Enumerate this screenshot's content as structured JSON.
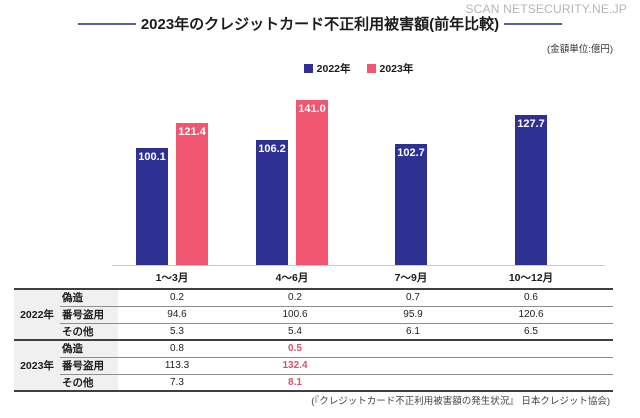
{
  "watermark": "SCAN NETSECURITY.NE.JP",
  "header": {
    "title": "2023年のクレジットカード不正利用被害額(前年比較)",
    "unit_note": "(金額単位:億円)"
  },
  "legend": {
    "items": [
      {
        "label": "2022年",
        "color": "#2E3192"
      },
      {
        "label": "2023年",
        "color": "#F0566F"
      }
    ]
  },
  "chart_data": {
    "type": "bar",
    "title": "2023年のクレジットカード不正利用被害額(前年比較)",
    "unit": "億円",
    "categories": [
      "1〜3月",
      "4〜6月",
      "7〜9月",
      "10〜12月"
    ],
    "series": [
      {
        "name": "2022年",
        "color": "#2E3192",
        "values": [
          100.1,
          106.2,
          102.7,
          127.7
        ]
      },
      {
        "name": "2023年",
        "color": "#F0566F",
        "values": [
          121.4,
          141.0,
          null,
          null
        ]
      }
    ],
    "ylim": [
      0,
      150
    ],
    "grid": false,
    "legend_position": "top",
    "value_labels": "inside-top"
  },
  "table": {
    "groups": [
      {
        "year": "2022年",
        "rows": [
          {
            "label": "偽造",
            "values": [
              "0.2",
              "0.2",
              "0.7",
              "0.6"
            ]
          },
          {
            "label": "番号盗用",
            "values": [
              "94.6",
              "100.6",
              "95.9",
              "120.6"
            ]
          },
          {
            "label": "その他",
            "values": [
              "5.3",
              "5.4",
              "6.1",
              "6.5"
            ]
          }
        ]
      },
      {
        "year": "2023年",
        "rows": [
          {
            "label": "偽造",
            "values": [
              "0.8",
              "0.5",
              "",
              ""
            ],
            "highlight": [
              false,
              true,
              false,
              false
            ]
          },
          {
            "label": "番号盗用",
            "values": [
              "113.3",
              "132.4",
              "",
              ""
            ],
            "highlight": [
              false,
              true,
              false,
              false
            ]
          },
          {
            "label": "その他",
            "values": [
              "7.3",
              "8.1",
              "",
              ""
            ],
            "highlight": [
              false,
              true,
              false,
              false
            ]
          }
        ]
      }
    ]
  },
  "source": "(『クレジットカード不正利用被害額の発生状況』 日本クレジット協会)",
  "colors": {
    "navy": "#2E3192",
    "pink": "#F0566F",
    "highlight_text": "#DD4F6E",
    "title_line": "#56619E",
    "baseline": "#C9C9C9",
    "table_bg_gray": "#F0F0F0",
    "watermark_gray": "#B5B5B5"
  }
}
